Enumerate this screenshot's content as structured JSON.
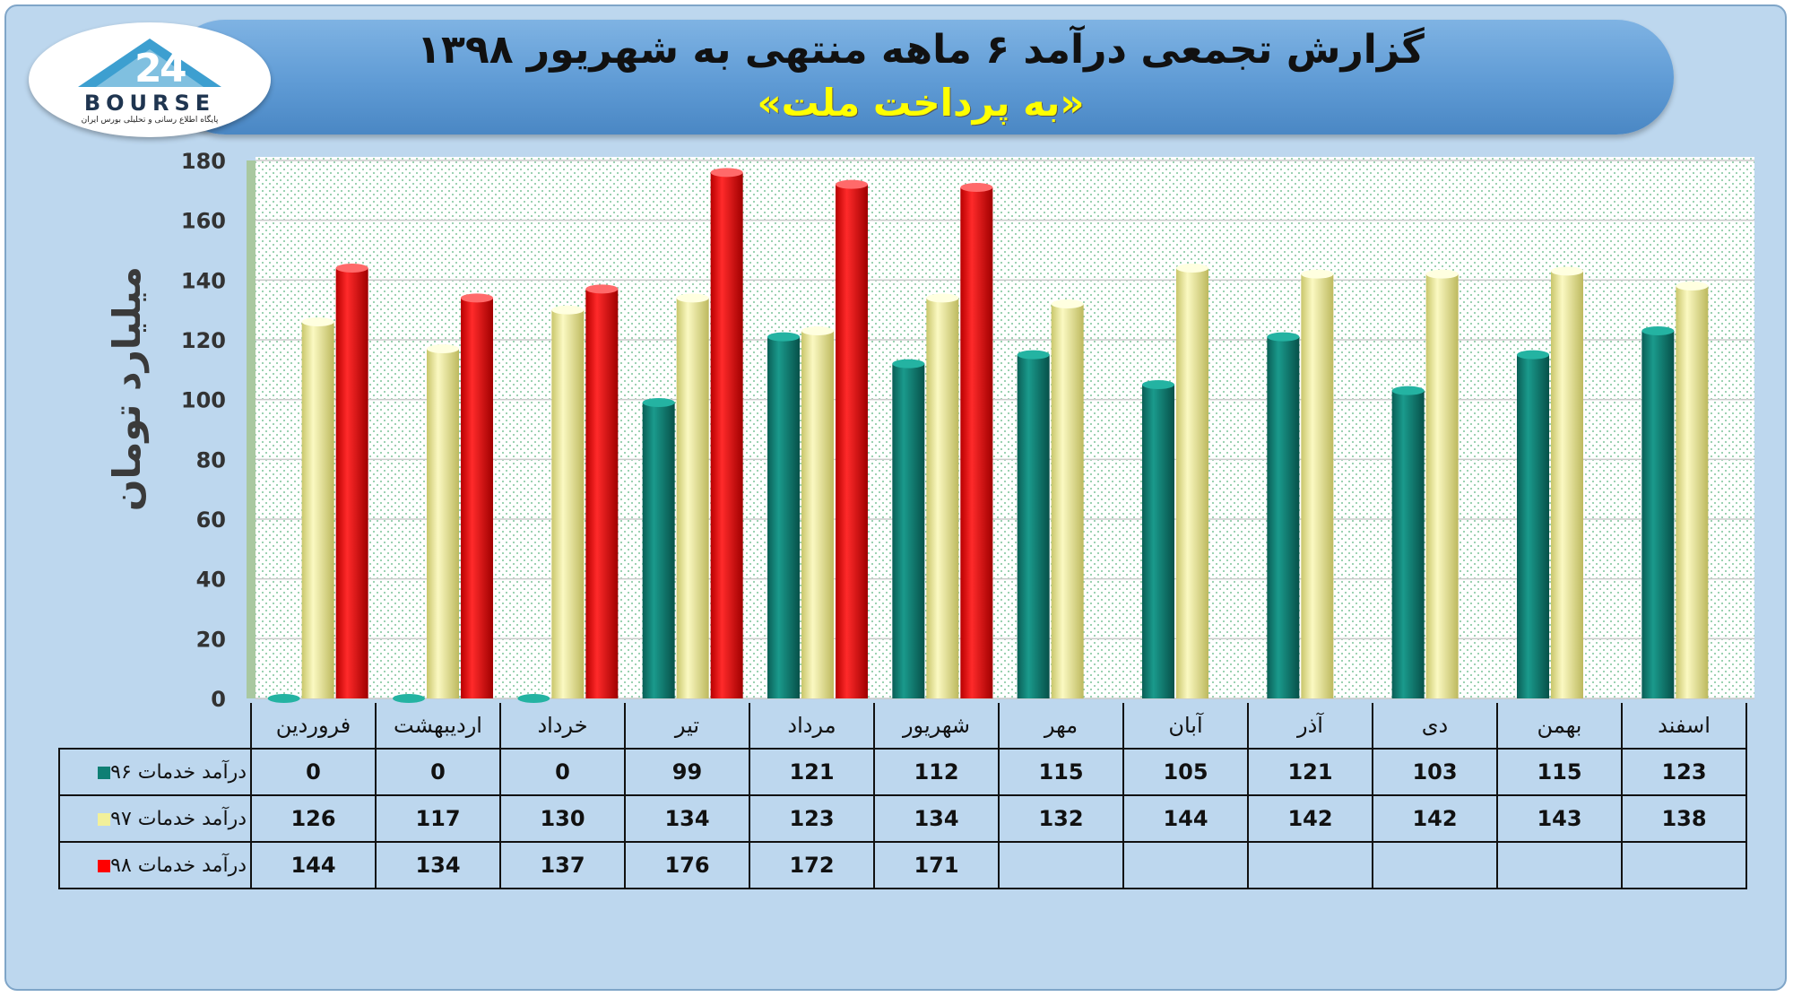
{
  "header": {
    "title": "گزارش تجمعی درآمد ۶ ماهه منتهی به شهریور ۱۳۹۸",
    "subtitle": "«به پرداخت ملت»"
  },
  "logo": {
    "brand": "BOURSE",
    "tagline": "پایگاه اطلاع رسانی و تحلیلی بورس ایران",
    "icon": "bourse24-logo"
  },
  "chart_data": {
    "type": "bar",
    "ylabel": "میلیارد تومان",
    "ylim": [
      0,
      180
    ],
    "yticks": [
      0,
      20,
      40,
      60,
      80,
      100,
      120,
      140,
      160,
      180
    ],
    "categories": [
      "فروردین",
      "اردیبهشت",
      "خرداد",
      "تیر",
      "مرداد",
      "شهریور",
      "مهر",
      "آبان",
      "آذر",
      "دی",
      "بهمن",
      "اسفند"
    ],
    "series": [
      {
        "name": "درآمد خدمات ۹۶",
        "color": "#0f7f74",
        "values": [
          0,
          0,
          0,
          99,
          121,
          112,
          115,
          105,
          121,
          103,
          115,
          123
        ]
      },
      {
        "name": "درآمد خدمات ۹۷",
        "color": "#f2f09a",
        "values": [
          126,
          117,
          130,
          134,
          123,
          134,
          132,
          144,
          142,
          142,
          143,
          138
        ]
      },
      {
        "name": "درآمد خدمات ۹۸",
        "color": "#ff0000",
        "values": [
          144,
          134,
          137,
          176,
          172,
          171,
          null,
          null,
          null,
          null,
          null,
          null
        ]
      }
    ],
    "legend": "table-left",
    "grid": true
  }
}
